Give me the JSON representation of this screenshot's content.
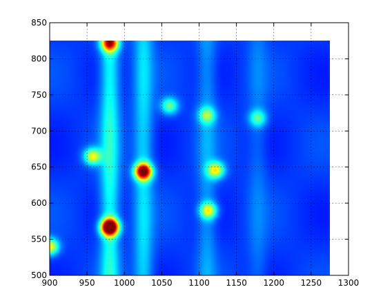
{
  "chart_data": {
    "type": "heatmap",
    "title": "",
    "xlabel": "",
    "ylabel": "",
    "xlim": [
      900,
      1300
    ],
    "ylim": [
      500,
      850
    ],
    "data_extent": {
      "x": [
        900,
        1275
      ],
      "y": [
        500,
        825
      ]
    },
    "grid": true,
    "colormap": "jet",
    "colormap_colors": [
      "#00008f",
      "#0000ff",
      "#00ffff",
      "#ffff00",
      "#ff0000",
      "#800000"
    ],
    "x_ticks": [
      900,
      950,
      1000,
      1050,
      1100,
      1150,
      1200,
      1250,
      1300
    ],
    "y_ticks": [
      500,
      550,
      600,
      650,
      700,
      750,
      800,
      850
    ],
    "x_tick_labels": [
      "900",
      "950",
      "1000",
      "1050",
      "1100",
      "1150",
      "1200",
      "1250",
      "1300"
    ],
    "y_tick_labels": [
      "500",
      "550",
      "600",
      "650",
      "700",
      "750",
      "800",
      "850"
    ],
    "background_level": 0.18,
    "hotspots": [
      {
        "x": 980,
        "y": 567,
        "value": 1.0
      },
      {
        "x": 1025,
        "y": 644,
        "value": 0.82
      },
      {
        "x": 980,
        "y": 822,
        "value": 0.62
      },
      {
        "x": 957,
        "y": 665,
        "value": 0.42
      },
      {
        "x": 1122,
        "y": 646,
        "value": 0.42
      },
      {
        "x": 1112,
        "y": 590,
        "value": 0.4
      },
      {
        "x": 1060,
        "y": 735,
        "value": 0.3
      },
      {
        "x": 1110,
        "y": 722,
        "value": 0.28
      },
      {
        "x": 1178,
        "y": 718,
        "value": 0.25
      },
      {
        "x": 900,
        "y": 540,
        "value": 0.45
      }
    ],
    "ridges": [
      {
        "x": 980,
        "value": 0.22
      },
      {
        "x": 1025,
        "value": 0.16
      },
      {
        "x": 1110,
        "value": 0.1
      },
      {
        "x": 1178,
        "value": 0.06
      }
    ]
  }
}
